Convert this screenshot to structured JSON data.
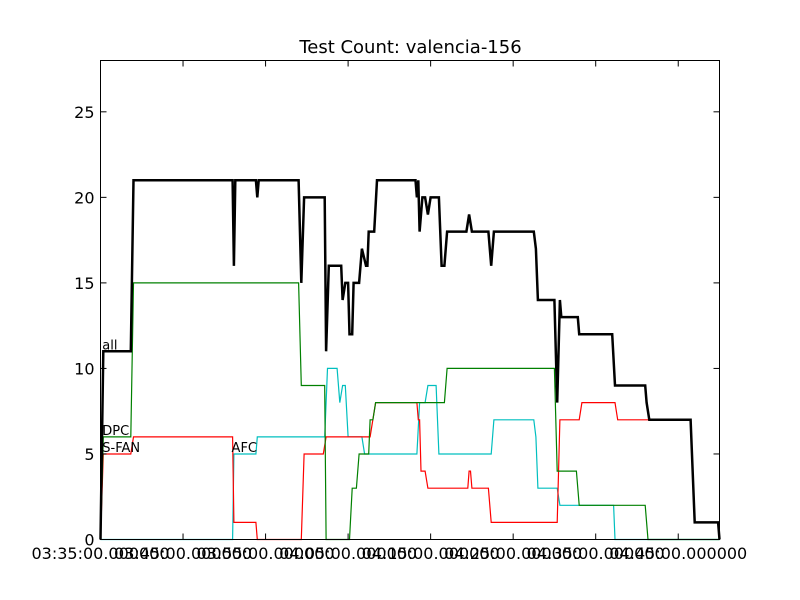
{
  "chart_data": {
    "type": "line",
    "title": "Test Count: valencia-156",
    "xlabel": "",
    "ylabel": "",
    "xlim": [
      "03:35:00",
      "04:50:00"
    ],
    "ylim": [
      0,
      28
    ],
    "yticks": [
      0,
      5,
      10,
      15,
      20,
      25
    ],
    "xticks": [
      "03:35:00",
      "03:45:00",
      "03:55:00",
      "04:05:00",
      "04:15:00",
      "04:25:00",
      "04:35:00",
      "04:45:00"
    ],
    "xtick_labels": [
      "03:35:00.000000",
      "03:45:00.000000",
      "03:55:00.000000",
      "04:05:00.000000",
      "04:15:00.000000",
      "04:25:00.000000",
      "04:35:00.000000",
      "04:45:00.000000"
    ],
    "grid": false,
    "annotations": [
      {
        "text": "all",
        "x": "03:35:20",
        "y": 11
      },
      {
        "text": "DPC",
        "x": "03:35:20",
        "y": 6
      },
      {
        "text": "S-FAN",
        "x": "03:35:20",
        "y": 5
      },
      {
        "text": "AFC",
        "x": "03:51:00",
        "y": 5
      }
    ],
    "series": [
      {
        "name": "all",
        "color": "#000000",
        "width": 2.5,
        "points": [
          [
            "03:35:00",
            0
          ],
          [
            "03:35:20",
            11
          ],
          [
            "03:38:40",
            11
          ],
          [
            "03:39:00",
            21
          ],
          [
            "03:51:00",
            21
          ],
          [
            "03:51:10",
            16
          ],
          [
            "03:51:20",
            21
          ],
          [
            "03:53:50",
            21
          ],
          [
            "03:54:00",
            20
          ],
          [
            "03:54:10",
            21
          ],
          [
            "03:59:00",
            21
          ],
          [
            "03:59:20",
            15
          ],
          [
            "03:59:40",
            20
          ],
          [
            "04:02:10",
            20
          ],
          [
            "04:02:20",
            11
          ],
          [
            "04:02:40",
            16
          ],
          [
            "04:04:10",
            16
          ],
          [
            "04:04:20",
            14
          ],
          [
            "04:04:40",
            15
          ],
          [
            "04:05:00",
            15
          ],
          [
            "04:05:10",
            12
          ],
          [
            "04:05:30",
            12
          ],
          [
            "04:05:40",
            15
          ],
          [
            "04:06:20",
            15
          ],
          [
            "04:06:40",
            17
          ],
          [
            "04:07:10",
            16
          ],
          [
            "04:07:20",
            16
          ],
          [
            "04:07:30",
            18
          ],
          [
            "04:08:10",
            18
          ],
          [
            "04:08:30",
            21
          ],
          [
            "04:13:10",
            21
          ],
          [
            "04:13:20",
            20
          ],
          [
            "04:13:30",
            21
          ],
          [
            "04:13:40",
            18
          ],
          [
            "04:14:00",
            20
          ],
          [
            "04:14:20",
            20
          ],
          [
            "04:14:40",
            19
          ],
          [
            "04:15:00",
            20
          ],
          [
            "04:16:00",
            20
          ],
          [
            "04:16:20",
            16
          ],
          [
            "04:16:40",
            16
          ],
          [
            "04:17:00",
            18
          ],
          [
            "04:19:20",
            18
          ],
          [
            "04:19:40",
            19
          ],
          [
            "04:20:00",
            18
          ],
          [
            "04:22:00",
            18
          ],
          [
            "04:22:20",
            16
          ],
          [
            "04:22:40",
            18
          ],
          [
            "04:27:30",
            18
          ],
          [
            "04:27:45",
            17
          ],
          [
            "04:28:00",
            14
          ],
          [
            "04:30:00",
            14
          ],
          [
            "04:30:20",
            8
          ],
          [
            "04:30:40",
            14
          ],
          [
            "04:30:50",
            13
          ],
          [
            "04:32:50",
            13
          ],
          [
            "04:33:00",
            12
          ],
          [
            "04:37:00",
            12
          ],
          [
            "04:37:20",
            9
          ],
          [
            "04:41:00",
            9
          ],
          [
            "04:41:10",
            8
          ],
          [
            "04:41:30",
            7
          ],
          [
            "04:46:30",
            7
          ],
          [
            "04:47:00",
            1
          ],
          [
            "04:49:50",
            1
          ],
          [
            "04:50:00",
            0
          ]
        ]
      },
      {
        "name": "DPC",
        "color": "#008000",
        "width": 1.2,
        "points": [
          [
            "03:35:00",
            0
          ],
          [
            "03:35:20",
            6
          ],
          [
            "03:38:40",
            6
          ],
          [
            "03:39:00",
            15
          ],
          [
            "03:59:00",
            15
          ],
          [
            "03:59:20",
            9
          ],
          [
            "04:02:10",
            9
          ],
          [
            "04:02:20",
            0
          ],
          [
            "04:05:10",
            0
          ],
          [
            "04:05:30",
            3
          ],
          [
            "04:06:00",
            3
          ],
          [
            "04:06:20",
            5
          ],
          [
            "04:07:30",
            5
          ],
          [
            "04:07:40",
            7
          ],
          [
            "04:08:00",
            7
          ],
          [
            "04:08:20",
            8
          ],
          [
            "04:16:40",
            8
          ],
          [
            "04:17:00",
            10
          ],
          [
            "04:30:00",
            10
          ],
          [
            "04:30:20",
            4
          ],
          [
            "04:32:40",
            4
          ],
          [
            "04:33:00",
            2
          ],
          [
            "04:41:00",
            2
          ],
          [
            "04:41:10",
            1
          ],
          [
            "04:41:20",
            0
          ],
          [
            "04:50:00",
            0
          ]
        ]
      },
      {
        "name": "S-FAN",
        "color": "#ff0000",
        "width": 1.2,
        "points": [
          [
            "03:35:00",
            0
          ],
          [
            "03:35:20",
            5
          ],
          [
            "03:38:40",
            5
          ],
          [
            "03:39:00",
            6
          ],
          [
            "03:51:00",
            6
          ],
          [
            "03:51:10",
            1
          ],
          [
            "03:53:50",
            1
          ],
          [
            "03:54:00",
            0
          ],
          [
            "03:59:20",
            0
          ],
          [
            "03:59:40",
            5
          ],
          [
            "04:02:00",
            5
          ],
          [
            "04:02:20",
            6
          ],
          [
            "04:07:40",
            6
          ],
          [
            "04:08:20",
            8
          ],
          [
            "04:13:20",
            8
          ],
          [
            "04:13:30",
            7
          ],
          [
            "04:13:40",
            7
          ],
          [
            "04:13:50",
            4
          ],
          [
            "04:14:20",
            4
          ],
          [
            "04:14:40",
            3
          ],
          [
            "04:19:30",
            3
          ],
          [
            "04:19:40",
            4
          ],
          [
            "04:19:50",
            4
          ],
          [
            "04:20:00",
            3
          ],
          [
            "04:22:00",
            3
          ],
          [
            "04:22:20",
            1
          ],
          [
            "04:30:20",
            1
          ],
          [
            "04:30:40",
            7
          ],
          [
            "04:33:00",
            7
          ],
          [
            "04:33:20",
            8
          ],
          [
            "04:37:20",
            8
          ],
          [
            "04:37:40",
            7
          ],
          [
            "04:46:30",
            7
          ],
          [
            "04:47:00",
            1
          ],
          [
            "04:49:50",
            1
          ],
          [
            "04:50:00",
            0
          ]
        ]
      },
      {
        "name": "AFC",
        "color": "#00bfbf",
        "width": 1.2,
        "points": [
          [
            "03:35:00",
            0
          ],
          [
            "03:51:00",
            0
          ],
          [
            "03:51:10",
            5
          ],
          [
            "03:53:50",
            5
          ],
          [
            "03:54:00",
            6
          ],
          [
            "04:02:10",
            6
          ],
          [
            "04:02:30",
            10
          ],
          [
            "04:03:40",
            10
          ],
          [
            "04:04:00",
            8
          ],
          [
            "04:04:20",
            9
          ],
          [
            "04:04:40",
            9
          ],
          [
            "04:05:00",
            6
          ],
          [
            "04:06:40",
            6
          ],
          [
            "04:07:00",
            5
          ],
          [
            "04:13:20",
            5
          ],
          [
            "04:13:40",
            8
          ],
          [
            "04:14:20",
            8
          ],
          [
            "04:14:40",
            9
          ],
          [
            "04:15:40",
            9
          ],
          [
            "04:16:00",
            5
          ],
          [
            "04:22:20",
            5
          ],
          [
            "04:22:40",
            7
          ],
          [
            "04:27:30",
            7
          ],
          [
            "04:27:45",
            6
          ],
          [
            "04:28:00",
            3
          ],
          [
            "04:30:20",
            3
          ],
          [
            "04:30:40",
            2
          ],
          [
            "04:37:10",
            2
          ],
          [
            "04:37:20",
            0
          ],
          [
            "04:50:00",
            0
          ]
        ]
      }
    ]
  }
}
